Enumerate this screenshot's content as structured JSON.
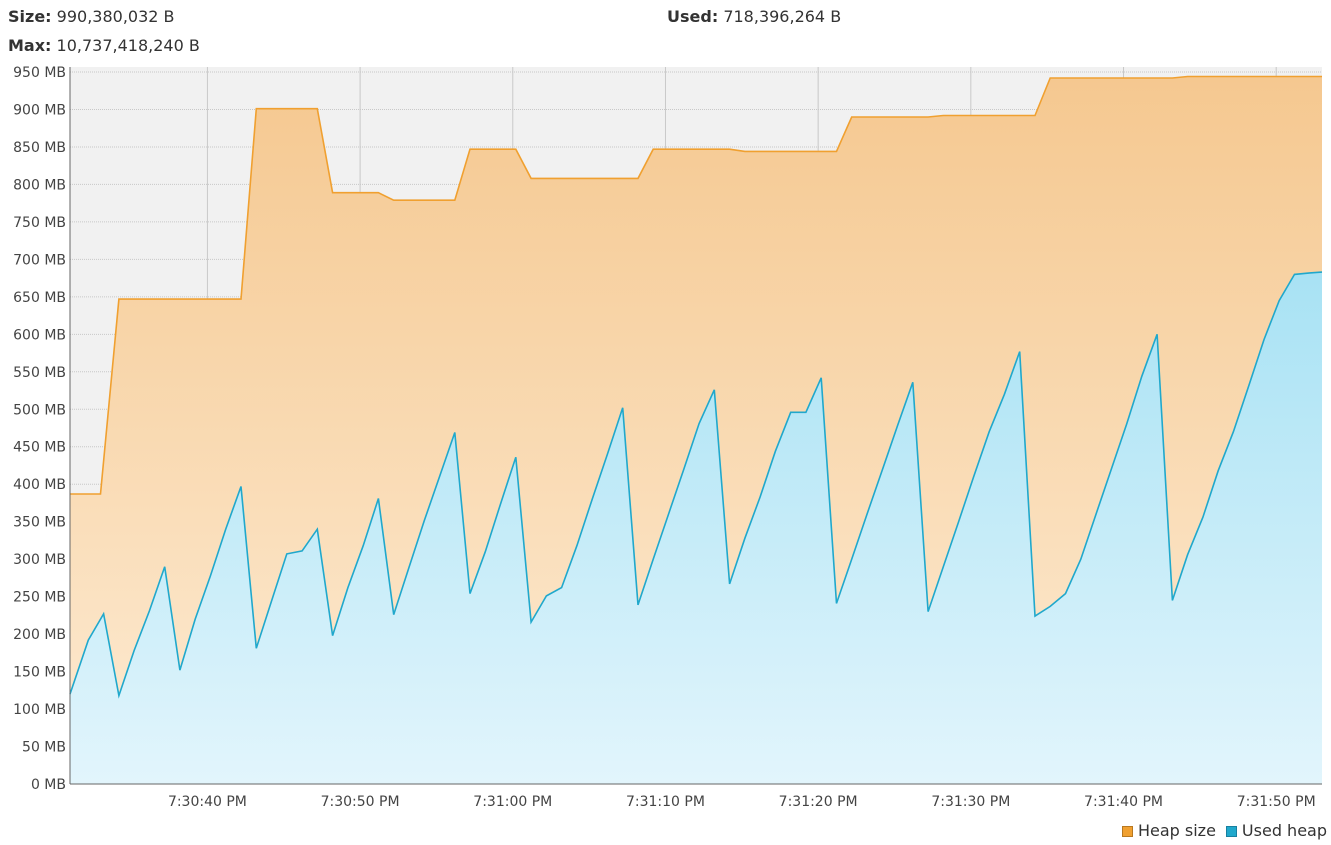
{
  "header": {
    "size_label": "Size:",
    "size_value": "990,380,032 B",
    "used_label": "Used:",
    "used_value": "718,396,264 B",
    "max_label": "Max:",
    "max_value": "10,737,418,240 B"
  },
  "colors": {
    "heap_line": "#f0a030",
    "heap_fill_top": "#f5c890",
    "heap_fill_bottom": "#fdebd3",
    "used_line": "#20a8cc",
    "used_fill_top": "#a8e2f4",
    "used_fill_bottom": "#e2f5fc",
    "plot_bg": "#f1f1f1",
    "grid": "#c8c8c8"
  },
  "chart_data": {
    "type": "area",
    "xlim": [
      31,
      113
    ],
    "ylim": [
      0,
      950
    ],
    "yticks": [
      0,
      50,
      100,
      150,
      200,
      250,
      300,
      350,
      400,
      450,
      500,
      550,
      600,
      650,
      700,
      750,
      800,
      850,
      900,
      950
    ],
    "yunit": "MB",
    "xticks": [
      {
        "t": 40,
        "label": "7:30:40 PM"
      },
      {
        "t": 50,
        "label": "7:30:50 PM"
      },
      {
        "t": 60,
        "label": "7:31:00 PM"
      },
      {
        "t": 70,
        "label": "7:31:10 PM"
      },
      {
        "t": 80,
        "label": "7:31:20 PM"
      },
      {
        "t": 90,
        "label": "7:31:30 PM"
      },
      {
        "t": 100,
        "label": "7:31:40 PM"
      },
      {
        "t": 110,
        "label": "7:31:50 PM"
      }
    ],
    "grid": true,
    "legend": "bottom-right",
    "series": [
      {
        "name": "Heap size",
        "t": [
          31,
          33,
          34.2,
          42.2,
          43.2,
          47.2,
          48.2,
          51.2,
          52.2,
          56.2,
          57.2,
          60.2,
          61.2,
          68.2,
          69.2,
          74.2,
          75.2,
          81.2,
          82.2,
          87.2,
          88.2,
          94.2,
          95.2,
          103.2,
          104.2,
          113
        ],
        "values": [
          387,
          387,
          647,
          647,
          901,
          901,
          789,
          789,
          779,
          779,
          847,
          847,
          808,
          808,
          847,
          847,
          844,
          844,
          890,
          890,
          892,
          892,
          942,
          942,
          944,
          944
        ]
      },
      {
        "name": "Used heap",
        "t": [
          31,
          32.2,
          33.2,
          34.2,
          35.2,
          36.2,
          37.2,
          38.2,
          39.2,
          40.2,
          41.2,
          42.2,
          43.2,
          44.2,
          45.2,
          46.2,
          47.2,
          48.2,
          49.2,
          50.2,
          51.2,
          52.2,
          53.2,
          54.2,
          55.2,
          56.2,
          57.2,
          58.2,
          59.2,
          60.2,
          61.2,
          62.2,
          63.2,
          64.2,
          65.2,
          66.2,
          67.2,
          68.2,
          69.2,
          70.2,
          71.2,
          72.2,
          73.2,
          74.2,
          75.2,
          76.2,
          77.2,
          78.2,
          79.2,
          80.2,
          81.2,
          82.2,
          83.2,
          84.2,
          85.2,
          86.2,
          87.2,
          88.2,
          89.2,
          90.2,
          91.2,
          92.2,
          93.2,
          94.2,
          95.2,
          96.2,
          97.2,
          98.2,
          99.2,
          100.2,
          101.2,
          102.2,
          103.2,
          104.2,
          105.2,
          106.2,
          107.2,
          108.2,
          109.2,
          110.2,
          111.2,
          112.2,
          113
        ],
        "values": [
          120,
          192,
          227,
          118,
          178,
          231,
          290,
          152,
          220,
          278,
          340,
          397,
          181,
          244,
          307,
          311,
          340,
          198,
          262,
          318,
          381,
          226,
          289,
          351,
          410,
          469,
          254,
          310,
          374,
          436,
          216,
          251,
          262,
          318,
          380,
          440,
          502,
          239,
          300,
          360,
          420,
          481,
          526,
          267,
          328,
          383,
          444,
          496,
          496,
          542,
          241,
          300,
          360,
          419,
          478,
          536,
          230,
          290,
          350,
          411,
          470,
          520,
          577,
          224,
          237,
          254,
          300,
          360,
          420,
          480,
          544,
          600,
          245,
          306,
          356,
          418,
          470,
          531,
          593,
          645,
          680,
          682,
          683
        ]
      }
    ]
  }
}
